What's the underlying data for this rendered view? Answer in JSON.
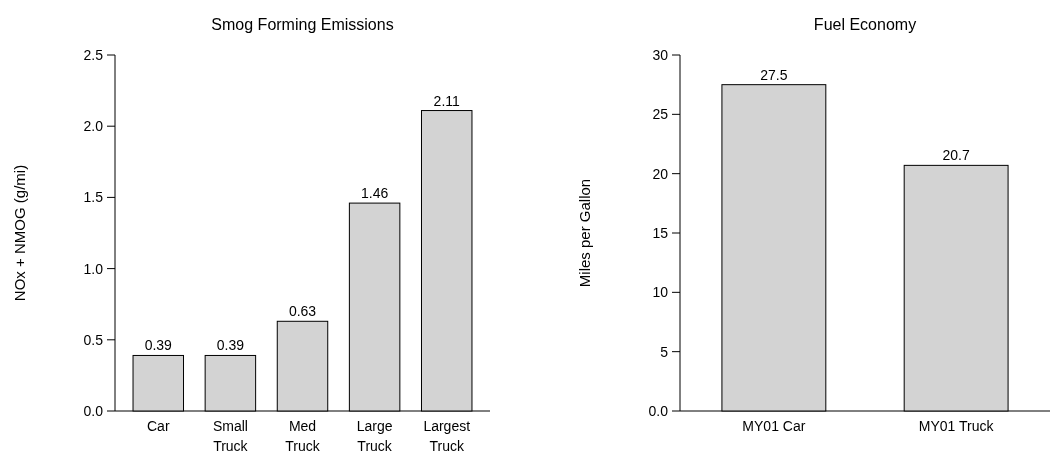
{
  "chart_data": [
    {
      "type": "bar",
      "title": "Smog Forming Emissions",
      "ylabel": "NOx + NMOG (g/mi)",
      "categories": [
        "Car",
        "Small\nTruck",
        "Med\nTruck",
        "Large\nTruck",
        "Largest\nTruck"
      ],
      "values": [
        0.39,
        0.39,
        0.63,
        1.46,
        2.11
      ],
      "color": "#d3d3d3",
      "data_labels": true,
      "ylim": [
        0,
        2.5
      ],
      "yticks": [
        {
          "value": 0,
          "label": "0.0"
        },
        0.5,
        {
          "value": 1,
          "label": "1.0"
        },
        1.5,
        {
          "value": 2,
          "label": "2.0"
        },
        2.5
      ],
      "grid": false
    },
    {
      "type": "bar",
      "title": "Fuel Economy",
      "ylabel": "Miles per Gallon",
      "categories": [
        "MY01 Car",
        "MY01 Truck"
      ],
      "values": [
        27.5,
        20.7
      ],
      "color": "#d3d3d3",
      "data_labels": true,
      "ylim": [
        0,
        30
      ],
      "yticks": [
        {
          "value": 0,
          "label": "0.0"
        },
        5,
        10,
        15,
        20,
        25,
        30
      ],
      "grid": false
    }
  ]
}
